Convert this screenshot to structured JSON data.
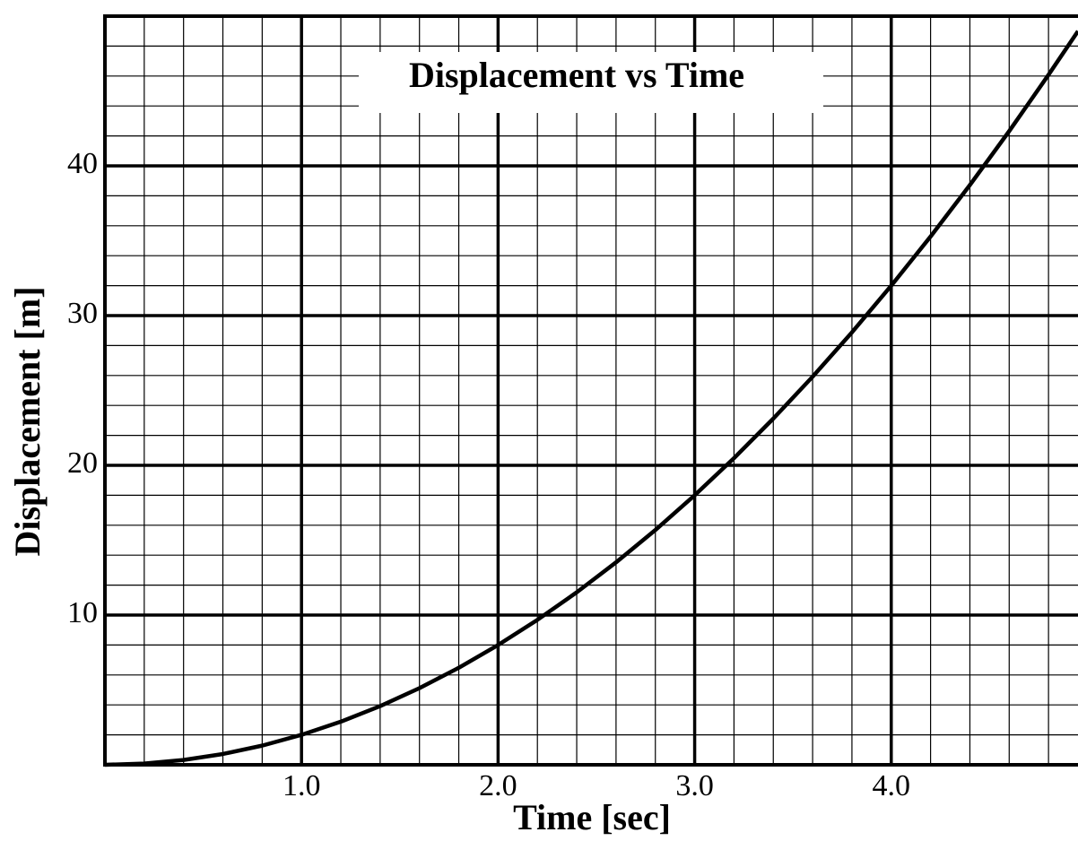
{
  "chart_data": {
    "type": "line",
    "title": "Displacement vs Time",
    "x_label": "Time [sec]",
    "y_label": "Displacement [m]",
    "x": [
      0,
      0.2,
      0.4,
      0.6,
      0.8,
      1.0,
      1.2,
      1.4,
      1.6,
      1.8,
      2.0,
      2.2,
      2.4,
      2.6,
      2.8,
      3.0,
      3.2,
      3.4,
      3.6,
      3.8,
      4.0,
      4.2,
      4.4,
      4.6,
      4.8,
      4.95
    ],
    "series": [
      {
        "name": "Displacement",
        "color": "#000000",
        "values": [
          0,
          0.08,
          0.32,
          0.72,
          1.28,
          2,
          2.88,
          3.92,
          5.12,
          6.48,
          8,
          9.68,
          11.52,
          13.52,
          15.68,
          18,
          20.48,
          23.12,
          25.92,
          28.88,
          32,
          35.28,
          38.72,
          42.32,
          46.08,
          49
        ]
      }
    ],
    "xlim": [
      0,
      4.95
    ],
    "ylim": [
      0,
      50
    ],
    "xticks": [
      {
        "value": 1,
        "label": "1.0"
      },
      {
        "value": 2,
        "label": "2.0"
      },
      {
        "value": 3,
        "label": "3.0"
      },
      {
        "value": 4,
        "label": "4.0"
      }
    ],
    "yticks": [
      10,
      20,
      30,
      40
    ],
    "grid": true,
    "minor_grid": {
      "x": 0.2,
      "y": 2
    }
  }
}
